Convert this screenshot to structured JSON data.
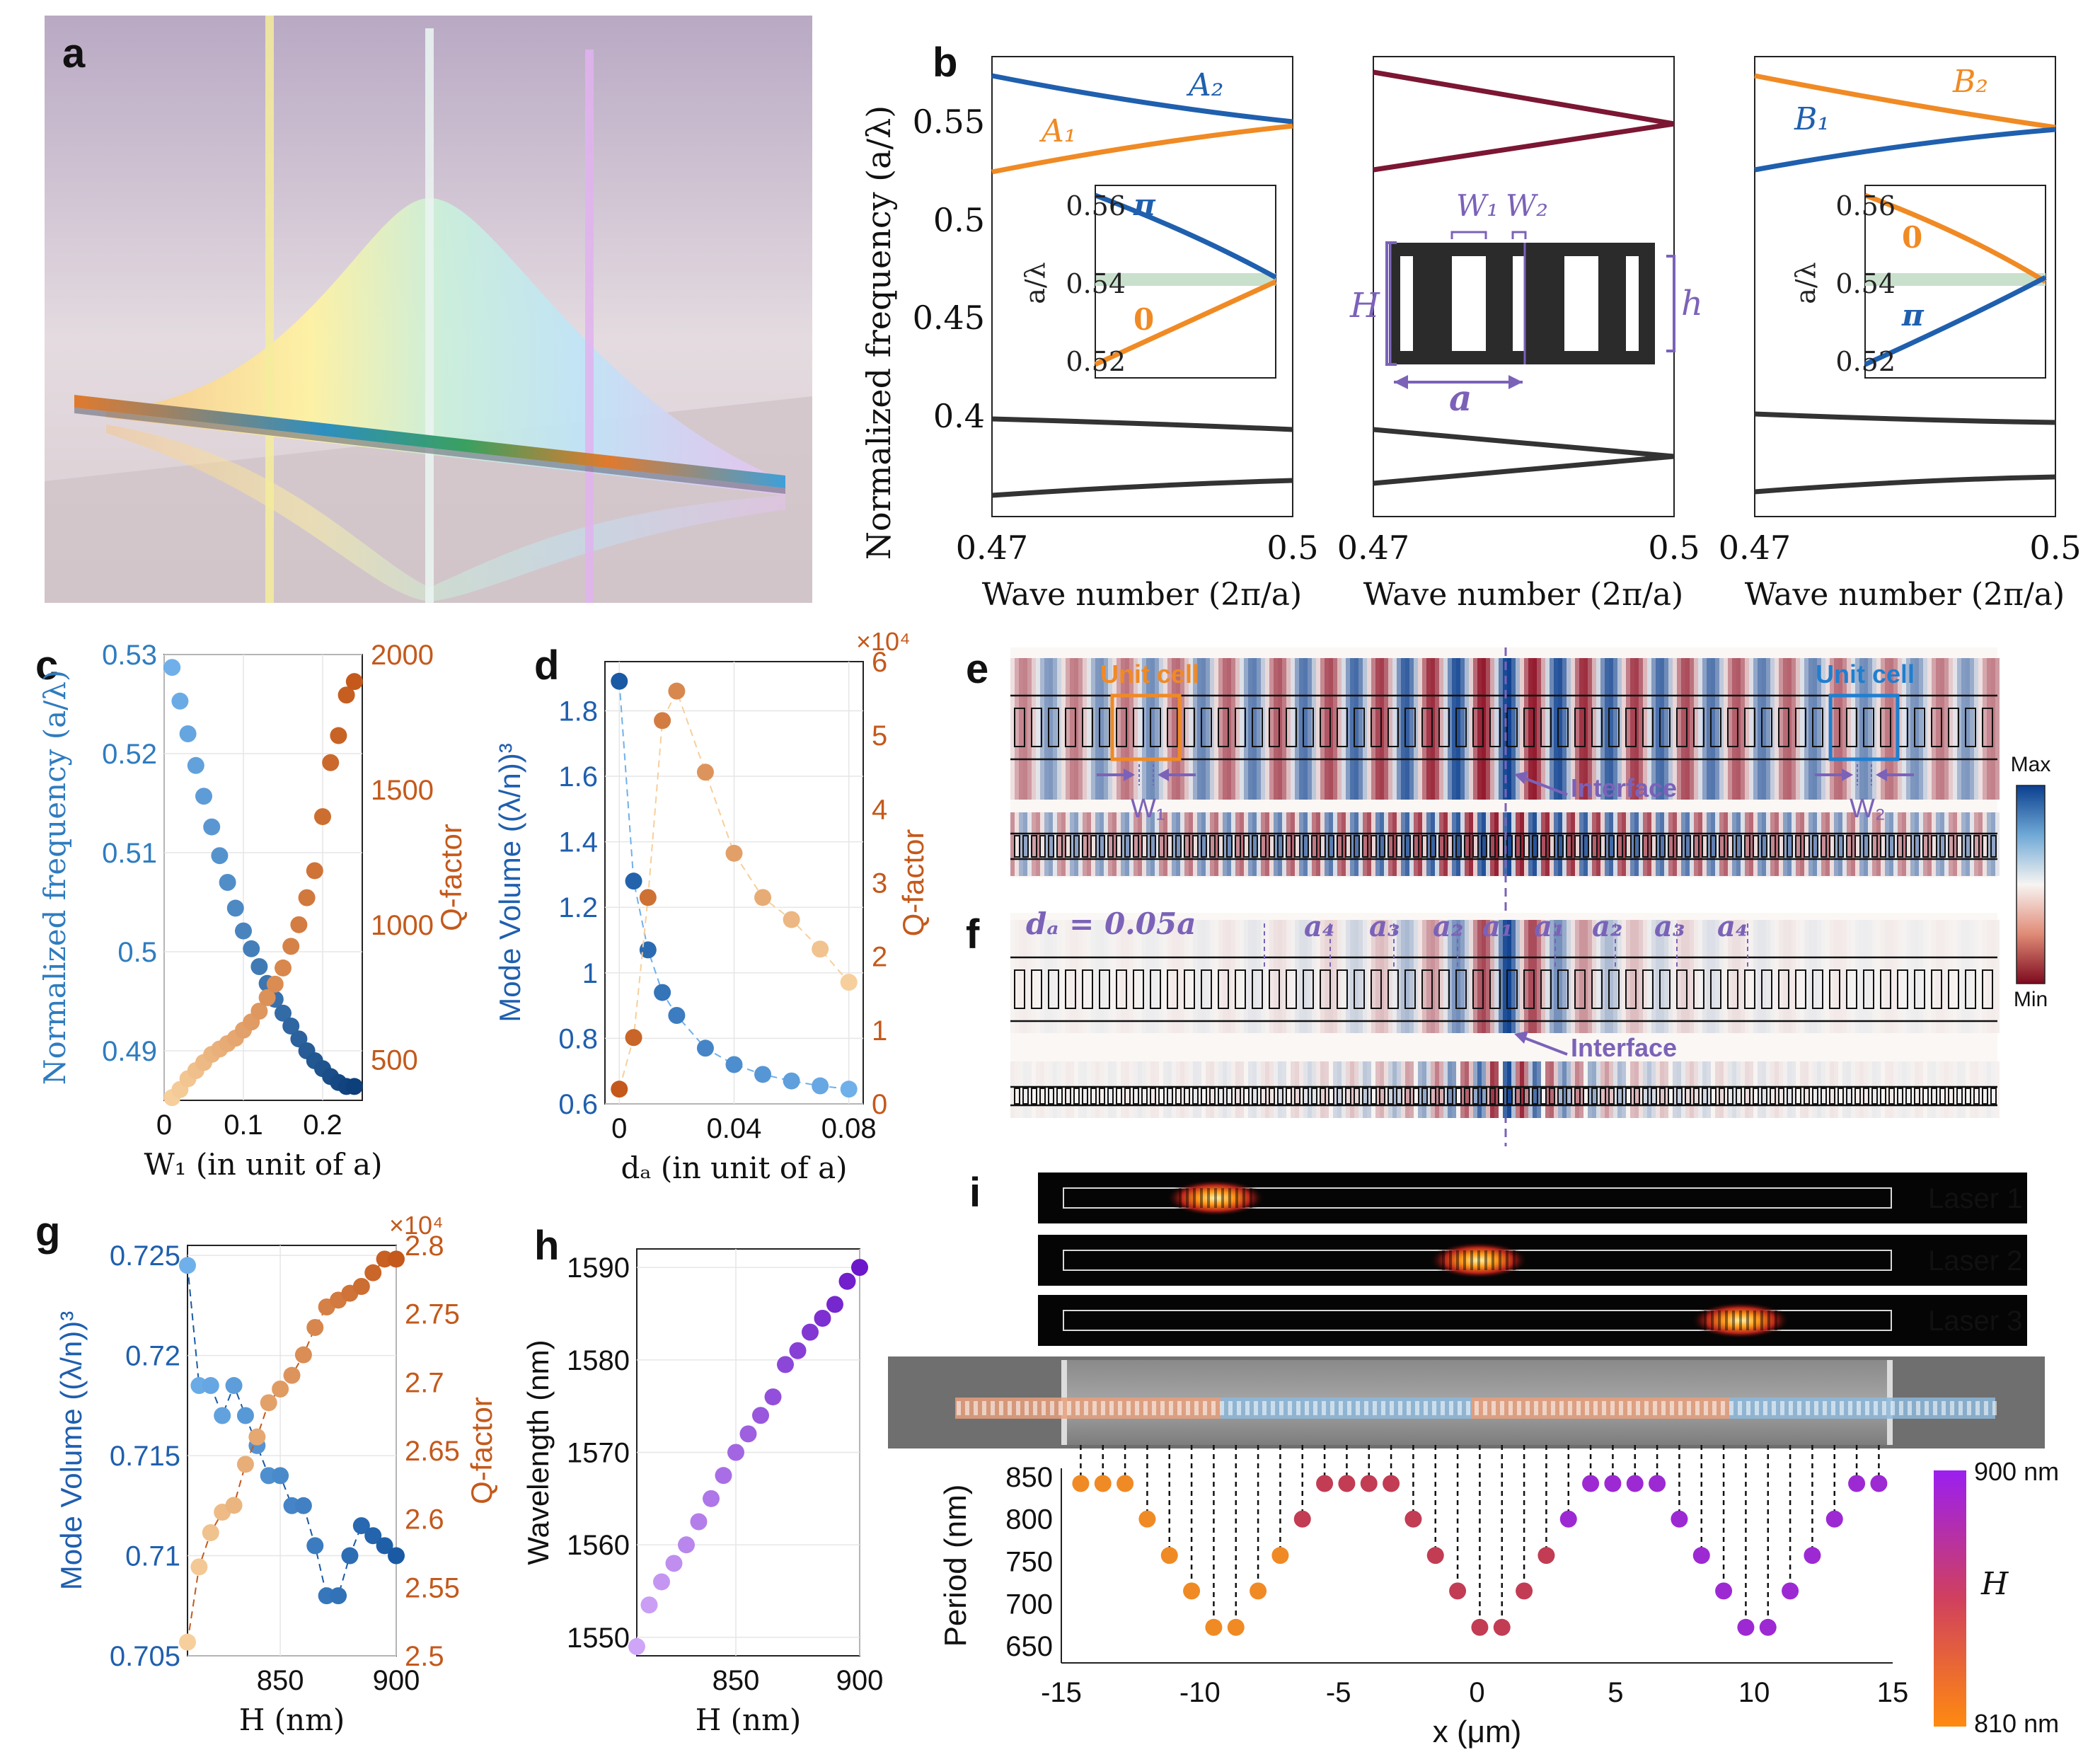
{
  "panels": {
    "a": "a",
    "b": "b",
    "c": "c",
    "d": "d",
    "e": "e",
    "f": "f",
    "g": "g",
    "h": "h",
    "i": "i"
  },
  "colors": {
    "blue": "#1f5fae",
    "orange": "#f08a24",
    "maroon": "#7b1633",
    "dark": "#333333",
    "c_left": "#2f7cbf",
    "c_right": "#c4591b",
    "lavender": "#7b62b8",
    "band": "#c9e1cc"
  },
  "panel_b": {
    "ylabel": "Normalized frequency (a/λ)",
    "xlabel": "Wave number (2π/a)",
    "xticks": [
      "0.47",
      "0.5"
    ],
    "yticks": [
      "0.55",
      "0.5",
      "0.45",
      "0.4"
    ],
    "left_labels": [
      "A₂",
      "A₁"
    ],
    "right_labels": [
      "B₂",
      "B₁"
    ],
    "inset_ylabel": "a/λ",
    "inset_yticks": [
      "0.56",
      "0.54",
      "0.52"
    ],
    "inset_left_symbols": [
      "π",
      "0"
    ],
    "inset_right_symbols": [
      "0",
      "π"
    ],
    "unit_cell_labels": {
      "W1": "W₁",
      "W2": "W₂",
      "H": "H",
      "h": "h",
      "a": "a"
    }
  },
  "chart_data": [
    {
      "id": "c",
      "type": "scatter",
      "xlabel": "W₁ (in unit of a)",
      "ylabel": "Normalized frequency (a/λ)",
      "y2label": "Q-factor",
      "xticks": [
        "0",
        "0.1",
        "0.2"
      ],
      "yticks": [
        "0.53",
        "0.52",
        "0.51",
        "0.5",
        "0.49"
      ],
      "y2ticks": [
        "2000",
        "1500",
        "1000",
        "500"
      ],
      "xlim": [
        0,
        0.25
      ],
      "ylim": [
        0.485,
        0.53
      ],
      "y2lim": [
        350,
        2000
      ],
      "series": [
        {
          "axis": "left",
          "x": [
            0.01,
            0.02,
            0.03,
            0.04,
            0.05,
            0.06,
            0.07,
            0.08,
            0.09,
            0.1,
            0.11,
            0.12,
            0.13,
            0.14,
            0.15,
            0.16,
            0.17,
            0.18,
            0.19,
            0.2,
            0.21,
            0.22,
            0.23,
            0.24
          ],
          "y": [
            0.5287,
            0.5253,
            0.522,
            0.5188,
            0.5157,
            0.5126,
            0.5097,
            0.507,
            0.5044,
            0.5021,
            0.5003,
            0.4985,
            0.4968,
            0.4952,
            0.4938,
            0.4925,
            0.4912,
            0.49,
            0.489,
            0.4882,
            0.4874,
            0.4868,
            0.4864,
            0.4864
          ]
        },
        {
          "axis": "right",
          "x": [
            0.01,
            0.02,
            0.03,
            0.04,
            0.05,
            0.06,
            0.07,
            0.08,
            0.09,
            0.1,
            0.11,
            0.12,
            0.13,
            0.14,
            0.15,
            0.16,
            0.17,
            0.18,
            0.19,
            0.2,
            0.21,
            0.22,
            0.23,
            0.24
          ],
          "y": [
            360,
            390,
            430,
            460,
            490,
            520,
            540,
            560,
            580,
            610,
            640,
            680,
            730,
            780,
            840,
            920,
            1000,
            1100,
            1200,
            1400,
            1600,
            1700,
            1850,
            1900
          ]
        }
      ]
    },
    {
      "id": "d",
      "type": "scatter",
      "xlabel": "dₐ (in unit of a)",
      "ylabel": "Mode Volume ((λ/n))³",
      "y2label": "Q-factor",
      "y2exponent": "×10⁴",
      "xticks": [
        "0",
        "0.04",
        "0.08"
      ],
      "yticks": [
        "1.8",
        "1.6",
        "1.4",
        "1.2",
        "1",
        "0.8",
        "0.6"
      ],
      "y2ticks": [
        "6",
        "5",
        "4",
        "3",
        "2",
        "1",
        "0"
      ],
      "xlim": [
        -0.005,
        0.085
      ],
      "ylim": [
        0.6,
        1.95
      ],
      "y2lim": [
        0,
        6
      ],
      "series": [
        {
          "axis": "left",
          "x": [
            0,
            0.005,
            0.01,
            0.015,
            0.02,
            0.03,
            0.04,
            0.05,
            0.06,
            0.07,
            0.08
          ],
          "y": [
            1.89,
            1.28,
            1.07,
            0.94,
            0.87,
            0.77,
            0.72,
            0.69,
            0.67,
            0.655,
            0.645
          ]
        },
        {
          "axis": "right",
          "x": [
            0,
            0.005,
            0.01,
            0.015,
            0.02,
            0.03,
            0.04,
            0.05,
            0.06,
            0.07,
            0.08
          ],
          "y": [
            0.2,
            0.9,
            2.8,
            5.2,
            5.6,
            4.5,
            3.4,
            2.8,
            2.5,
            2.1,
            1.65
          ]
        }
      ]
    },
    {
      "id": "g",
      "type": "scatter",
      "xlabel": "H (nm)",
      "ylabel": "Mode Volume ((λ/n))³",
      "y2label": "Q-factor",
      "y2exponent": "×10⁴",
      "xticks": [
        "850",
        "900"
      ],
      "yticks": [
        "0.725",
        "0.72",
        "0.715",
        "0.71",
        "0.705"
      ],
      "y2ticks": [
        "2.8",
        "2.75",
        "2.7",
        "2.65",
        "2.6",
        "2.55",
        "2.5"
      ],
      "xlim": [
        810,
        900
      ],
      "ylim": [
        0.705,
        0.7255
      ],
      "y2lim": [
        2.5,
        2.8
      ],
      "series": [
        {
          "axis": "left",
          "x": [
            810,
            815,
            820,
            825,
            830,
            835,
            840,
            845,
            850,
            855,
            860,
            865,
            870,
            875,
            880,
            885,
            890,
            895,
            900
          ],
          "y": [
            0.7245,
            0.7185,
            0.7185,
            0.717,
            0.7185,
            0.717,
            0.7155,
            0.714,
            0.714,
            0.7125,
            0.7125,
            0.7105,
            0.708,
            0.708,
            0.71,
            0.7115,
            0.711,
            0.7105,
            0.71
          ]
        },
        {
          "axis": "right",
          "x": [
            810,
            815,
            820,
            825,
            830,
            835,
            840,
            845,
            850,
            855,
            860,
            865,
            870,
            875,
            880,
            885,
            890,
            895,
            900
          ],
          "y": [
            2.51,
            2.565,
            2.59,
            2.605,
            2.61,
            2.64,
            2.66,
            2.685,
            2.695,
            2.705,
            2.72,
            2.74,
            2.755,
            2.76,
            2.765,
            2.77,
            2.78,
            2.79,
            2.79
          ]
        }
      ]
    },
    {
      "id": "h",
      "type": "scatter",
      "xlabel": "H (nm)",
      "ylabel": "Wavelength (nm)",
      "xticks": [
        "850",
        "900"
      ],
      "yticks": [
        "1590",
        "1580",
        "1570",
        "1560",
        "1550"
      ],
      "xlim": [
        810,
        900
      ],
      "ylim": [
        1548,
        1592
      ],
      "series": [
        {
          "x": [
            810,
            815,
            820,
            825,
            830,
            835,
            840,
            845,
            850,
            855,
            860,
            865,
            870,
            875,
            880,
            885,
            890,
            895,
            900
          ],
          "y": [
            1549,
            1553.5,
            1556,
            1558,
            1560,
            1562.5,
            1565,
            1567.5,
            1570,
            1572,
            1574,
            1576,
            1579.5,
            1581,
            1583,
            1584.5,
            1586,
            1588.5,
            1590
          ]
        }
      ]
    },
    {
      "id": "i",
      "type": "scatter",
      "xlabel": "x (μm)",
      "ylabel": "Period (nm)",
      "xticks": [
        "-15",
        "-10",
        "-5",
        "0",
        "5",
        "10",
        "15"
      ],
      "yticks": [
        "850",
        "800",
        "750",
        "700",
        "650"
      ],
      "xlim": [
        -15,
        15
      ],
      "ylim": [
        630,
        860
      ],
      "colorbar": {
        "label": "H",
        "top": "900 nm",
        "bottom": "810 nm"
      },
      "series": [
        {
          "x": [
            -14.3,
            -13.5,
            -12.7,
            -11.9,
            -11.1,
            -10.3,
            -9.5,
            -8.7,
            -7.9,
            -7.1
          ],
          "y": [
            842,
            842,
            842,
            800,
            757,
            715,
            672,
            672,
            715,
            757
          ],
          "color": "#f08a24"
        },
        {
          "x": [
            -6.3,
            -5.5,
            -4.7,
            -3.9,
            -3.1,
            -2.3,
            -1.5,
            -0.7,
            0.1,
            0.9,
            1.7,
            2.5
          ],
          "y": [
            800,
            842,
            842,
            842,
            842,
            800,
            757,
            715,
            672,
            672,
            715,
            757
          ],
          "color": "#c23c54"
        },
        {
          "x": [
            3.3,
            4.1,
            4.9,
            5.7,
            6.5,
            7.3,
            8.1,
            8.9,
            9.7,
            10.5,
            11.3,
            12.1,
            12.9,
            13.7,
            14.5
          ],
          "y": [
            800,
            842,
            842,
            842,
            842,
            800,
            757,
            715,
            672,
            672,
            715,
            757,
            800,
            842,
            842
          ],
          "color": "#9d29d3"
        }
      ]
    }
  ],
  "panel_e": {
    "unit_cell_left": "Unit cell",
    "unit_cell_right": "Unit cell",
    "interface": "Interface",
    "w1": "W₁",
    "w2": "W₂",
    "colorbar_max": "Max",
    "colorbar_min": "Min"
  },
  "panel_f": {
    "da_label": "dₐ = 0.05a",
    "segments": [
      "a₄",
      "a₃",
      "a₂",
      "a₁",
      "a₁",
      "a₂",
      "a₃",
      "a₄"
    ],
    "interface": "Interface"
  },
  "panel_i_lasers": [
    "Laser 1",
    "Laser 2",
    "Laser 3"
  ]
}
